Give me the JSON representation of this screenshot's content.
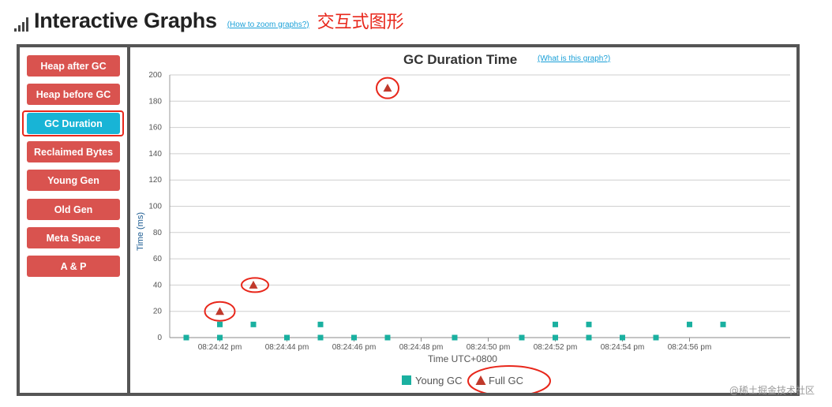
{
  "header": {
    "title": "Interactive Graphs",
    "help_link": "(How to zoom graphs?)",
    "annotation": "交互式图形"
  },
  "sidebar": {
    "items": [
      {
        "label": "Heap after GC",
        "active": false
      },
      {
        "label": "Heap before GC",
        "active": false
      },
      {
        "label": "GC Duration",
        "active": true
      },
      {
        "label": "Reclaimed Bytes",
        "active": false
      },
      {
        "label": "Young Gen",
        "active": false
      },
      {
        "label": "Old Gen",
        "active": false
      },
      {
        "label": "Meta Space",
        "active": false
      },
      {
        "label": "A & P",
        "active": false
      }
    ]
  },
  "chart": {
    "help_link": "(What is this graph?)"
  },
  "colors": {
    "young_gc": "#1ab0a0",
    "full_gc": "#c0392b",
    "active_button": "#18b4d6",
    "button": "#d9534f",
    "annotation_red": "#e8271b"
  },
  "chart_data": {
    "type": "scatter",
    "title": "GC Duration Time",
    "xlabel": "Time UTC+0800",
    "ylabel": "Time (ms)",
    "ylim": [
      0,
      200
    ],
    "yticks": [
      0,
      20,
      40,
      60,
      80,
      100,
      120,
      140,
      160,
      180,
      200
    ],
    "xlim": [
      "08:24:41",
      "08:24:59"
    ],
    "xticks": [
      "08:24:42 pm",
      "08:24:44 pm",
      "08:24:46 pm",
      "08:24:48 pm",
      "08:24:50 pm",
      "08:24:52 pm",
      "08:24:54 pm",
      "08:24:56 pm"
    ],
    "grid": true,
    "legend": "bottom-center",
    "series": [
      {
        "name": "Young GC",
        "marker": "square",
        "points": [
          {
            "x": "08:24:41",
            "y": 0
          },
          {
            "x": "08:24:42",
            "y": 0
          },
          {
            "x": "08:24:42",
            "y": 10
          },
          {
            "x": "08:24:43",
            "y": 10
          },
          {
            "x": "08:24:44",
            "y": 0
          },
          {
            "x": "08:24:45",
            "y": 0
          },
          {
            "x": "08:24:45",
            "y": 10
          },
          {
            "x": "08:24:46",
            "y": 0
          },
          {
            "x": "08:24:47",
            "y": 0
          },
          {
            "x": "08:24:49",
            "y": 0
          },
          {
            "x": "08:24:51",
            "y": 0
          },
          {
            "x": "08:24:52",
            "y": 0
          },
          {
            "x": "08:24:52",
            "y": 10
          },
          {
            "x": "08:24:53",
            "y": 0
          },
          {
            "x": "08:24:53",
            "y": 10
          },
          {
            "x": "08:24:54",
            "y": 0
          },
          {
            "x": "08:24:55",
            "y": 0
          },
          {
            "x": "08:24:56",
            "y": 10
          },
          {
            "x": "08:24:57",
            "y": 10
          }
        ]
      },
      {
        "name": "Full GC",
        "marker": "triangle",
        "points": [
          {
            "x": "08:24:42",
            "y": 20
          },
          {
            "x": "08:24:43",
            "y": 40
          },
          {
            "x": "08:24:47",
            "y": 190
          }
        ]
      }
    ]
  }
}
